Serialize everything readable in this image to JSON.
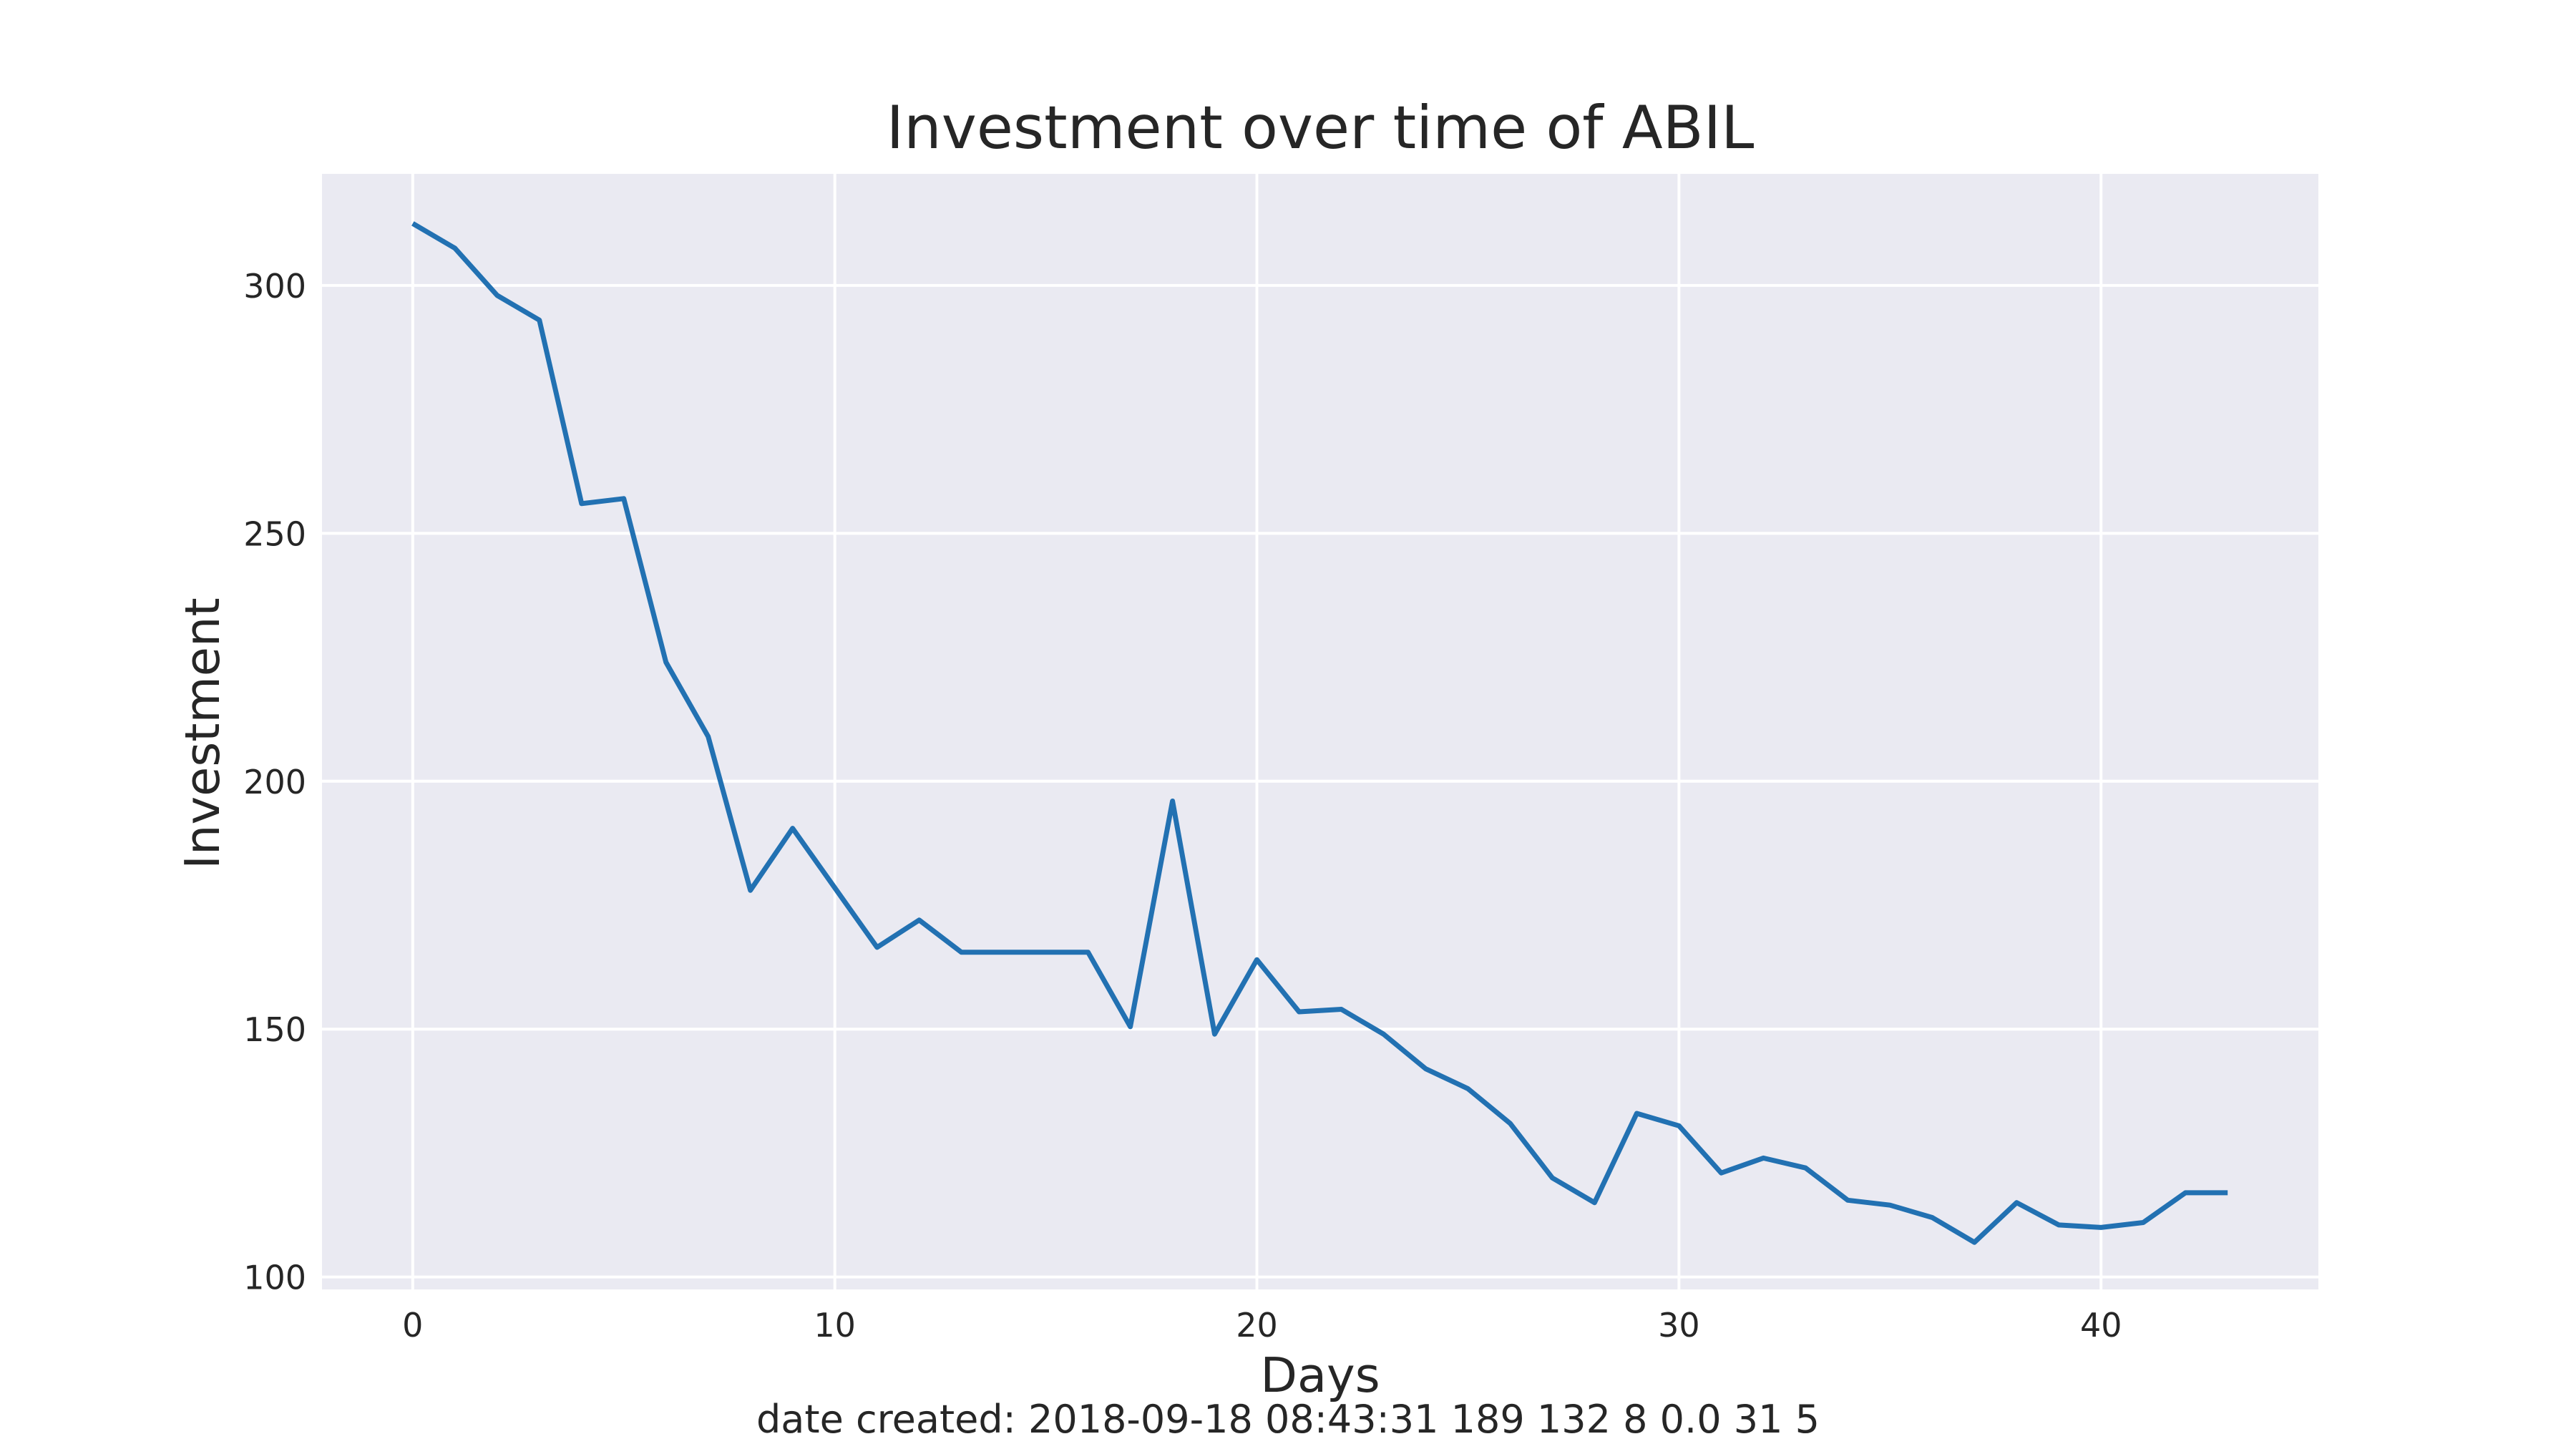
{
  "chart_data": {
    "type": "line",
    "title": "Investment over time of ABIL",
    "xlabel": "Days",
    "ylabel": "Investment",
    "footer": "date created: 2018-09-18 08:43:31 189 132 8 0.0 31 5",
    "xlim": [
      -2.15,
      45.15
    ],
    "ylim": [
      97.5,
      322.5
    ],
    "xticks": [
      0,
      10,
      20,
      30,
      40
    ],
    "xtick_labels": [
      "0",
      "10",
      "20",
      "30",
      "40"
    ],
    "yticks": [
      100,
      150,
      200,
      250,
      300
    ],
    "ytick_labels": [
      "100",
      "150",
      "200",
      "250",
      "300"
    ],
    "grid": true,
    "series": [
      {
        "color": "#2271b2",
        "x": [
          0,
          1,
          2,
          3,
          4,
          5,
          6,
          7,
          8,
          9,
          10,
          11,
          12,
          13,
          14,
          15,
          16,
          17,
          18,
          19,
          20,
          21,
          22,
          23,
          24,
          25,
          26,
          27,
          28,
          29,
          30,
          31,
          32,
          33,
          34,
          35,
          36,
          37,
          38,
          39,
          40,
          41,
          42,
          43
        ],
        "values": [
          312.5,
          307.5,
          298,
          293,
          256,
          257,
          224,
          209,
          178,
          190.5,
          178.5,
          166.5,
          172,
          165.5,
          165.5,
          165.5,
          165.5,
          150.5,
          196,
          149,
          164,
          153.5,
          154,
          149,
          142,
          138,
          131,
          120,
          115,
          133,
          130.5,
          121,
          124,
          122,
          115.5,
          114.5,
          112,
          107,
          115,
          110.5,
          110,
          111,
          117,
          117
        ]
      }
    ]
  },
  "colors": {
    "plot_background": "#eaeaf2",
    "grid": "#ffffff",
    "line": "#2271b2",
    "text": "#262626"
  }
}
